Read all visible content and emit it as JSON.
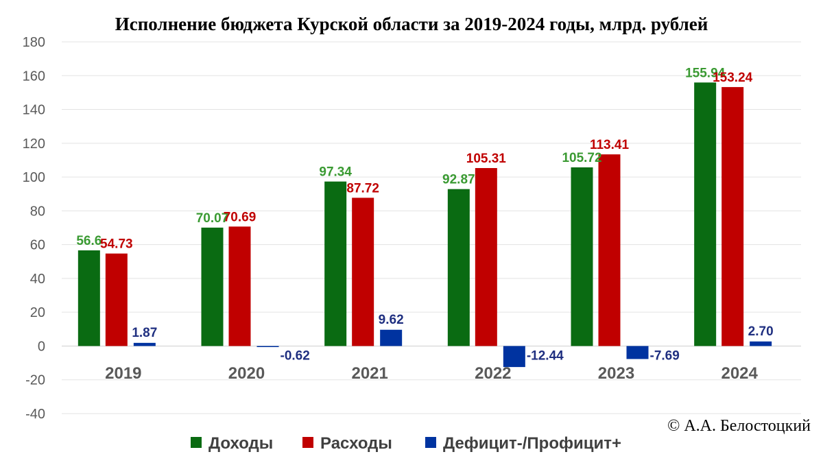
{
  "chart_data": {
    "type": "bar",
    "title": "Исполнение бюджета Курской области за 2019-2024 годы, млрд. рублей",
    "categories": [
      "2019",
      "2020",
      "2021",
      "2022",
      "2023",
      "2024"
    ],
    "series": [
      {
        "name": "Доходы",
        "color": "#0a6b12",
        "label_color": "#3a9a32",
        "values": [
          56.6,
          70.07,
          97.34,
          92.87,
          105.72,
          155.94
        ],
        "labels": [
          "56.6",
          "70.07",
          "97.34",
          "92.87",
          "105.72",
          "155.94"
        ]
      },
      {
        "name": "Расходы",
        "color": "#c00000",
        "label_color": "#c00000",
        "values": [
          54.73,
          70.69,
          87.72,
          105.31,
          113.41,
          153.24
        ],
        "labels": [
          "54.73",
          "70.69",
          "87.72",
          "105.31",
          "113.41",
          "153.24"
        ]
      },
      {
        "name": "Дефицит-/Профицит+",
        "color": "#0033a0",
        "label_color": "#1f2f80",
        "values": [
          1.87,
          -0.62,
          9.62,
          -12.44,
          -7.69,
          2.7
        ],
        "labels": [
          "1.87",
          "-0.62",
          "9.62",
          "-12.44",
          "-7.69",
          "2.70"
        ]
      }
    ],
    "yticks": [
      "-40",
      "-20",
      "0",
      "20",
      "40",
      "60",
      "80",
      "100",
      "120",
      "140",
      "160",
      "180"
    ],
    "ylim": [
      -40,
      180
    ],
    "grid": true,
    "legend_position": "bottom"
  },
  "footer": {
    "copyright": "© А.А. Белостоцкий"
  }
}
